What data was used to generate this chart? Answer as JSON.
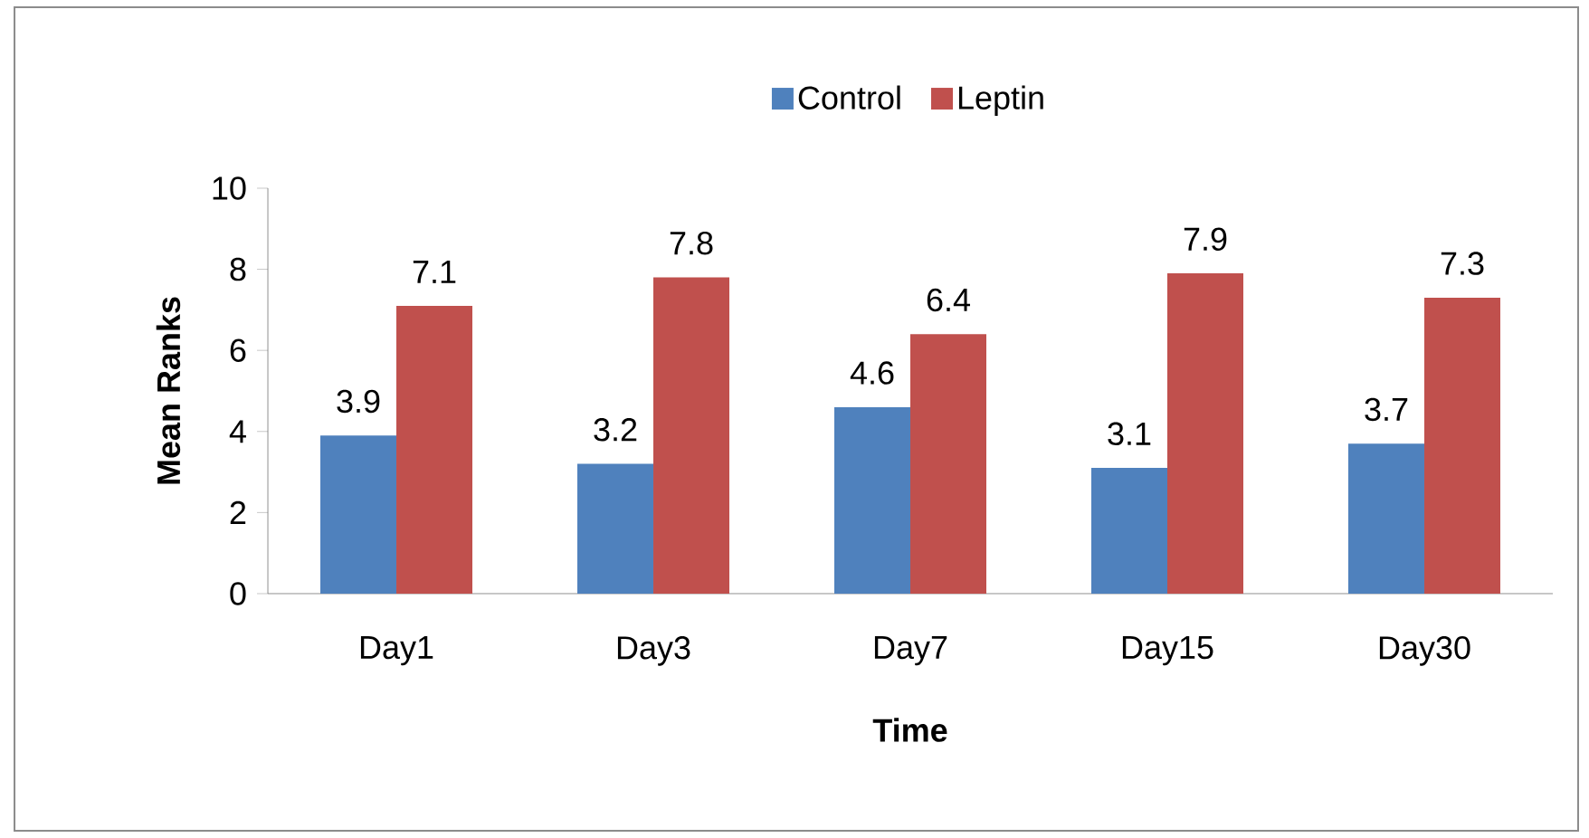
{
  "chart_data": {
    "type": "bar",
    "xlabel": "Time",
    "ylabel": "Mean Ranks",
    "categories": [
      "Day1",
      "Day3",
      "Day7",
      "Day15",
      "Day30"
    ],
    "series": [
      {
        "name": "Control",
        "color": "#4f81bd",
        "values": [
          3.9,
          3.2,
          4.6,
          3.1,
          3.7
        ]
      },
      {
        "name": "Leptin",
        "color": "#c0504d",
        "values": [
          7.1,
          7.8,
          6.4,
          7.9,
          7.3
        ]
      }
    ],
    "ylim": [
      0,
      10
    ],
    "yticks": [
      0,
      2,
      4,
      6,
      8,
      10
    ],
    "legend": "top",
    "data_labels": true
  }
}
